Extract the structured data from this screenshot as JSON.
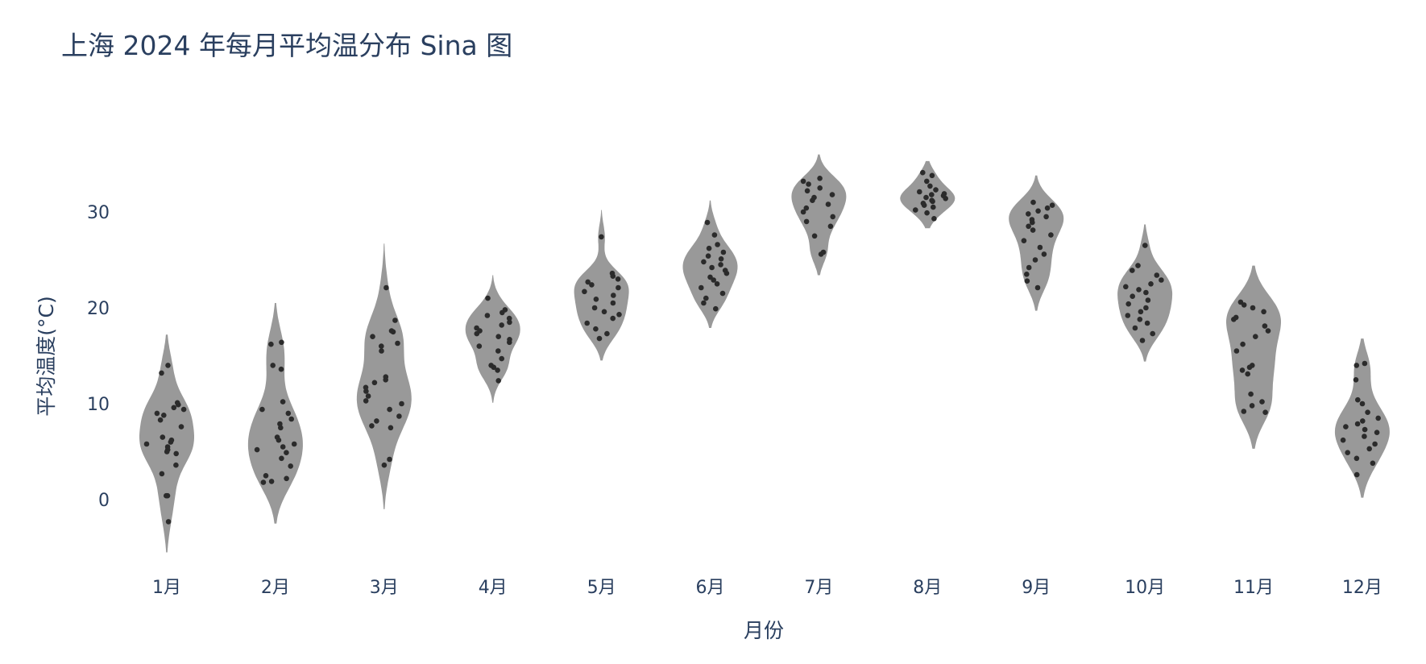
{
  "chart_data": {
    "type": "violin",
    "title": "上海 2024 年每月平均温分布 Sina 图",
    "xlabel": "月份",
    "ylabel": "平均温度(°C)",
    "ylim": [
      -7,
      39
    ],
    "yticks": [
      0,
      10,
      20,
      30
    ],
    "grid": false,
    "legend": "none",
    "colors": {
      "violin_fill": "#999999",
      "point": "#2b2b2b",
      "text": "#2a3f5f"
    },
    "categories": [
      "1月",
      "2月",
      "3月",
      "4月",
      "5月",
      "6月",
      "7月",
      "8月",
      "9月",
      "10月",
      "11月",
      "12月"
    ],
    "series": [
      {
        "category": "1月",
        "span": [
          -5.5,
          17.2
        ],
        "values": [
          -2.3,
          0.4,
          0.4,
          2.7,
          3.6,
          4.8,
          5.0,
          5.2,
          5.5,
          5.8,
          6.0,
          6.2,
          6.5,
          7.6,
          8.3,
          8.8,
          9.0,
          9.4,
          9.6,
          9.9,
          10.1,
          13.2,
          14.0
        ]
      },
      {
        "category": "2月",
        "span": [
          -2.5,
          20.5
        ],
        "values": [
          1.8,
          1.9,
          2.2,
          2.5,
          3.5,
          4.3,
          4.9,
          5.2,
          5.5,
          5.8,
          6.2,
          6.5,
          7.5,
          7.9,
          8.4,
          9.0,
          9.4,
          10.2,
          13.6,
          14.0,
          16.2,
          16.4
        ]
      },
      {
        "category": "3月",
        "span": [
          -1.0,
          26.7
        ],
        "values": [
          3.6,
          4.2,
          7.5,
          7.7,
          8.2,
          8.7,
          9.4,
          10.0,
          10.3,
          10.8,
          11.3,
          11.7,
          12.2,
          12.5,
          12.8,
          15.5,
          16.0,
          16.3,
          17.0,
          17.5,
          17.6,
          18.7,
          22.1
        ]
      },
      {
        "category": "4月",
        "span": [
          10.1,
          23.4
        ],
        "values": [
          12.4,
          13.5,
          13.8,
          14.0,
          14.7,
          15.5,
          16.0,
          16.4,
          16.7,
          17.0,
          17.3,
          17.6,
          17.9,
          18.2,
          18.5,
          18.9,
          19.2,
          19.5,
          19.8,
          21.0
        ]
      },
      {
        "category": "5月",
        "span": [
          14.5,
          30.2
        ],
        "values": [
          16.8,
          17.3,
          17.8,
          18.4,
          18.9,
          19.3,
          19.6,
          20.0,
          20.5,
          20.9,
          21.3,
          21.7,
          22.1,
          22.4,
          22.7,
          23.0,
          23.3,
          23.6,
          27.4
        ]
      },
      {
        "category": "6月",
        "span": [
          17.9,
          31.2
        ],
        "values": [
          19.9,
          20.5,
          21.0,
          21.5,
          22.1,
          22.5,
          22.9,
          23.2,
          23.6,
          23.9,
          24.2,
          24.5,
          24.8,
          25.1,
          25.4,
          25.8,
          26.2,
          26.6,
          27.6,
          28.9
        ]
      },
      {
        "category": "7月",
        "span": [
          23.4,
          36.0
        ],
        "values": [
          25.6,
          25.8,
          27.5,
          28.5,
          29.0,
          29.5,
          30.0,
          30.4,
          30.8,
          31.2,
          31.5,
          31.8,
          32.2,
          32.5,
          32.9,
          33.2,
          33.5
        ]
      },
      {
        "category": "8月",
        "span": [
          28.3,
          35.3
        ],
        "values": [
          29.3,
          29.9,
          30.2,
          30.5,
          30.7,
          30.9,
          31.1,
          31.2,
          31.4,
          31.5,
          31.7,
          31.8,
          31.9,
          32.1,
          32.3,
          32.7,
          33.2,
          33.8,
          34.1
        ]
      },
      {
        "category": "9月",
        "span": [
          19.7,
          33.8
        ],
        "values": [
          22.1,
          22.8,
          23.5,
          24.2,
          25.0,
          25.6,
          26.3,
          27.0,
          27.6,
          28.1,
          28.5,
          28.9,
          29.2,
          29.5,
          29.8,
          30.1,
          30.4,
          30.7,
          31.0
        ]
      },
      {
        "category": "10月",
        "span": [
          14.4,
          28.7
        ],
        "values": [
          16.6,
          17.3,
          17.9,
          18.4,
          18.8,
          19.2,
          19.6,
          20.0,
          20.4,
          20.8,
          21.2,
          21.6,
          21.9,
          22.2,
          22.5,
          22.9,
          23.4,
          23.9,
          24.4,
          26.5
        ]
      },
      {
        "category": "11月",
        "span": [
          5.3,
          24.4
        ],
        "values": [
          9.1,
          9.2,
          9.8,
          10.2,
          11.0,
          13.1,
          13.5,
          13.8,
          14.0,
          15.5,
          16.2,
          17.0,
          17.6,
          18.1,
          18.8,
          19.0,
          19.6,
          20.0,
          20.3,
          20.6
        ]
      },
      {
        "category": "12月",
        "span": [
          0.2,
          16.8
        ],
        "values": [
          2.6,
          3.8,
          4.3,
          4.9,
          5.3,
          5.8,
          6.2,
          6.6,
          7.0,
          7.3,
          7.6,
          7.9,
          8.2,
          8.5,
          9.1,
          10.0,
          10.4,
          12.5,
          14.0,
          14.2
        ]
      }
    ]
  }
}
